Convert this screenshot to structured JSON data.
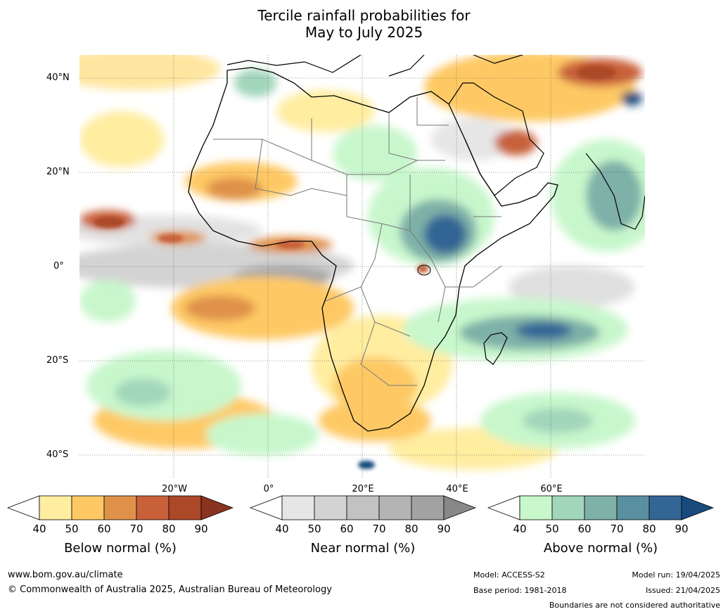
{
  "title_line1": "Tercile rainfall probabilities for",
  "title_line2": "May to July 2025",
  "lat_labels": [
    "40°N",
    "20°N",
    "0°",
    "20°S",
    "40°S"
  ],
  "lon_labels": [
    "20°W",
    "0°",
    "20°E",
    "40°E",
    "60°E"
  ],
  "legends": [
    {
      "title": "Below normal (%)",
      "ticks": [
        "40",
        "50",
        "60",
        "70",
        "80",
        "90"
      ],
      "colors": [
        "#ffffff",
        "#ffeda0",
        "#fec965",
        "#df914a",
        "#c8613a",
        "#ab4828",
        "#8a3320"
      ]
    },
    {
      "title": "Near normal (%)",
      "ticks": [
        "40",
        "50",
        "60",
        "70",
        "80",
        "90"
      ],
      "colors": [
        "#ffffff",
        "#e6e6e6",
        "#d3d3d3",
        "#c2c2c2",
        "#b4b4b4",
        "#a2a2a2",
        "#888888"
      ]
    },
    {
      "title": "Above normal (%)",
      "ticks": [
        "40",
        "50",
        "60",
        "70",
        "80",
        "90"
      ],
      "colors": [
        "#ffffff",
        "#c8f7cc",
        "#a2d6bb",
        "#7eb1a8",
        "#5a8f9f",
        "#336595",
        "#184a7d"
      ]
    }
  ],
  "footer": {
    "website": "www.bom.gov.au/climate",
    "copyright": "© Commonwealth of Australia 2025, Australian Bureau of Meteorology",
    "model": "Model: ACCESS-S2",
    "base_period": "Base period: 1981-2018",
    "model_run": "Model run: 19/04/2025",
    "issued": "Issued: 21/04/2025",
    "disclaimer": "Boundaries are not considered authoritative"
  }
}
